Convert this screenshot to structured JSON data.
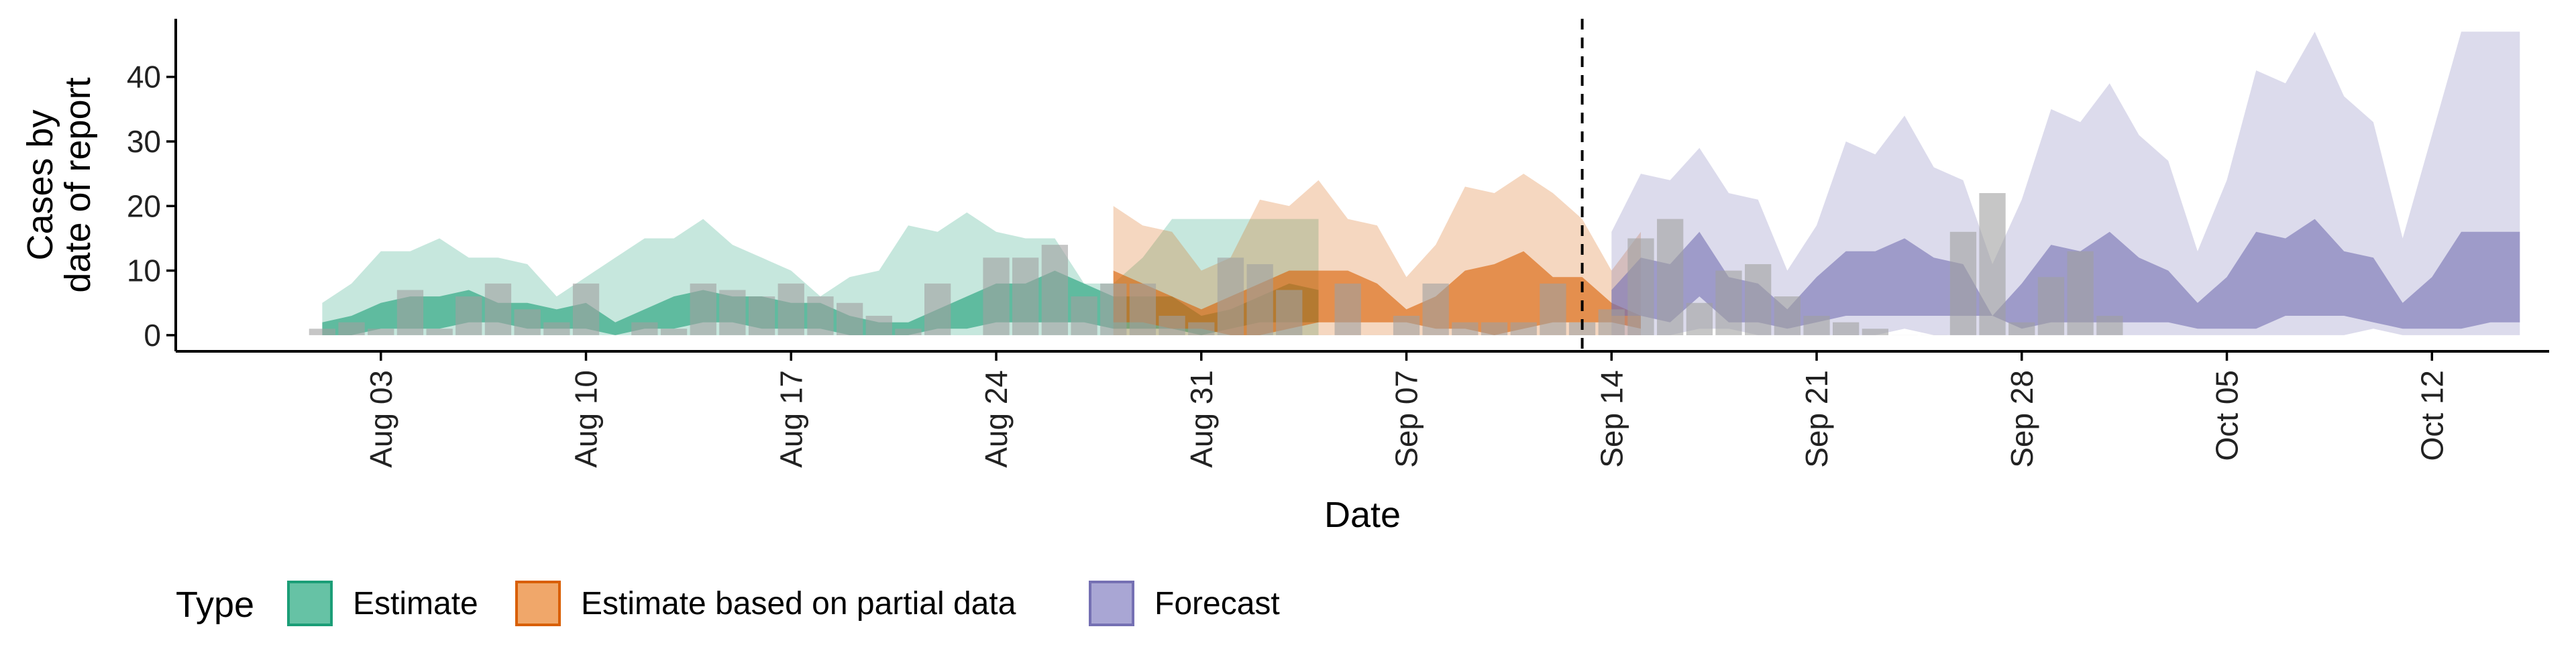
{
  "chart_data": {
    "type": "area",
    "title": "",
    "xlabel": "Date",
    "ylabel_lines": [
      "Cases by",
      "date of report"
    ],
    "x_range": [
      "2021-07-27",
      "2021-10-16"
    ],
    "ylim": [
      -2.5,
      49
    ],
    "y_ticks": [
      0,
      10,
      20,
      30,
      40
    ],
    "x_ticks": [
      {
        "date": "2021-08-03",
        "label": "Aug 03"
      },
      {
        "date": "2021-08-10",
        "label": "Aug 10"
      },
      {
        "date": "2021-08-17",
        "label": "Aug 17"
      },
      {
        "date": "2021-08-24",
        "label": "Aug 24"
      },
      {
        "date": "2021-08-31",
        "label": "Aug 31"
      },
      {
        "date": "2021-09-07",
        "label": "Sep 07"
      },
      {
        "date": "2021-09-14",
        "label": "Sep 14"
      },
      {
        "date": "2021-09-21",
        "label": "Sep 21"
      },
      {
        "date": "2021-09-28",
        "label": "Sep 28"
      },
      {
        "date": "2021-10-05",
        "label": "Oct 05"
      },
      {
        "date": "2021-10-12",
        "label": "Oct 12"
      }
    ],
    "grid": false,
    "vline_date": "2021-09-13",
    "legend": {
      "title": "Type",
      "position": "bottom",
      "items": [
        {
          "label": "Estimate",
          "fill": "#66c2a5",
          "stroke": "#1b9e77"
        },
        {
          "label": "Estimate based on partial data",
          "fill": "#f0a76a",
          "stroke": "#d95f02"
        },
        {
          "label": "Forecast",
          "fill": "#a9a6d4",
          "stroke": "#7570b3"
        }
      ]
    },
    "colors": {
      "estimate": "#1b9e77",
      "partial": "#d95f02",
      "forecast": "#7570b3",
      "bars": "#a0a0a0"
    },
    "observed_start": "2021-08-01",
    "observed": [
      1,
      2,
      1,
      7,
      1,
      6,
      8,
      4,
      2,
      8,
      0,
      2,
      1,
      8,
      7,
      6,
      8,
      6,
      5,
      3,
      1,
      8,
      0,
      12,
      12,
      14,
      6,
      8,
      8,
      3,
      2,
      12,
      11,
      7,
      0,
      8,
      0,
      3,
      8,
      2,
      2,
      2,
      8,
      2,
      4,
      15,
      18,
      5,
      10,
      11,
      6,
      3,
      2,
      1,
      0,
      0,
      16,
      22,
      2,
      9,
      13,
      3
    ],
    "series": [
      {
        "name": "Estimate",
        "start": "2021-08-01",
        "outer_lower": [
          0,
          0,
          0,
          0,
          0,
          0,
          0,
          0,
          0,
          0,
          0,
          0,
          0,
          0,
          0,
          0,
          0,
          0,
          0,
          0,
          0,
          0,
          0,
          0,
          0,
          0,
          0,
          0,
          0,
          0,
          0,
          0,
          0,
          0,
          0
        ],
        "inner_lower": [
          0,
          0,
          1,
          1,
          1,
          2,
          2,
          1,
          1,
          1,
          0,
          1,
          1,
          2,
          2,
          1,
          1,
          1,
          0,
          0,
          0,
          1,
          1,
          2,
          2,
          2,
          2,
          1,
          1,
          1,
          0,
          1,
          2,
          2,
          2
        ],
        "inner_upper": [
          2,
          3,
          5,
          6,
          6,
          7,
          5,
          5,
          4,
          5,
          2,
          4,
          6,
          7,
          6,
          6,
          5,
          5,
          3,
          2,
          2,
          4,
          6,
          8,
          8,
          10,
          8,
          6,
          6,
          6,
          3,
          4,
          6,
          8,
          7
        ],
        "outer_upper": [
          5,
          8,
          13,
          13,
          15,
          12,
          12,
          11,
          6,
          9,
          12,
          15,
          15,
          18,
          14,
          12,
          10,
          6,
          9,
          10,
          17,
          16,
          19,
          16,
          15,
          15,
          8,
          8,
          12,
          18,
          18,
          18,
          18,
          18,
          18
        ]
      },
      {
        "name": "Estimate based on partial data",
        "start": "2021-08-28",
        "outer_lower": [
          0,
          0,
          0,
          0,
          0,
          0,
          0,
          0,
          0,
          0,
          0,
          0,
          0,
          0,
          0,
          0,
          0,
          0,
          0
        ],
        "inner_lower": [
          2,
          2,
          1,
          1,
          0,
          0,
          1,
          2,
          2,
          2,
          2,
          1,
          1,
          0,
          1,
          2,
          2,
          2,
          1
        ],
        "inner_upper": [
          10,
          8,
          6,
          4,
          6,
          8,
          10,
          10,
          10,
          8,
          4,
          6,
          10,
          11,
          13,
          9,
          9,
          5,
          3
        ],
        "outer_upper": [
          20,
          17,
          16,
          10,
          12,
          21,
          20,
          24,
          18,
          17,
          9,
          14,
          23,
          22,
          25,
          22,
          18,
          10,
          16
        ]
      },
      {
        "name": "Forecast",
        "start": "2021-09-14",
        "outer_lower": [
          0,
          0,
          0,
          1,
          1,
          0,
          0,
          0,
          0,
          0,
          1,
          0,
          0,
          0,
          0,
          0,
          0,
          0,
          0,
          0,
          0,
          0,
          0,
          0,
          0,
          0,
          1,
          0,
          0,
          0,
          0,
          0
        ],
        "inner_lower": [
          3,
          3,
          2,
          6,
          2,
          2,
          1,
          2,
          3,
          3,
          3,
          3,
          3,
          3,
          1,
          2,
          2,
          2,
          2,
          2,
          1,
          1,
          1,
          3,
          3,
          3,
          2,
          1,
          1,
          1,
          2,
          2
        ],
        "inner_upper": [
          7,
          12,
          11,
          16,
          9,
          8,
          4,
          9,
          13,
          13,
          15,
          12,
          11,
          3,
          8,
          14,
          13,
          16,
          12,
          10,
          5,
          9,
          16,
          15,
          18,
          13,
          12,
          5,
          9,
          16,
          16,
          16
        ],
        "outer_upper": [
          16,
          25,
          24,
          29,
          22,
          21,
          10,
          17,
          30,
          28,
          34,
          26,
          24,
          11,
          21,
          35,
          33,
          39,
          31,
          27,
          13,
          24,
          41,
          39,
          47,
          37,
          33,
          15,
          31,
          47,
          47,
          47
        ]
      }
    ]
  }
}
